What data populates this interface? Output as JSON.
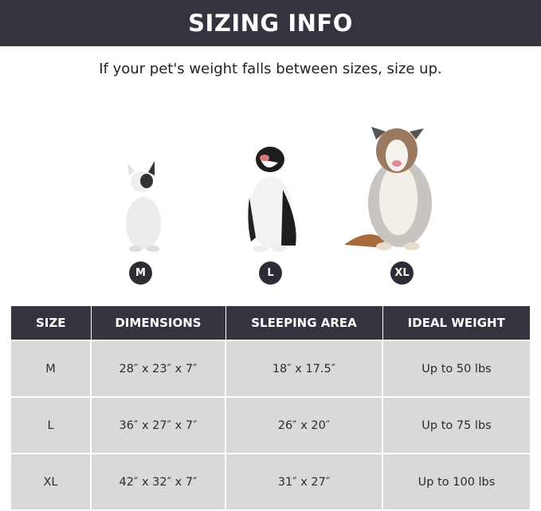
{
  "banner": {
    "title": "SIZING INFO"
  },
  "subtitle": "If your pet's weight falls between sizes, size up.",
  "dogs": [
    {
      "size": "M",
      "icon": "french-bulldog-photo"
    },
    {
      "size": "L",
      "icon": "border-collie-photo"
    },
    {
      "size": "XL",
      "icon": "australian-shepherd-photo"
    }
  ],
  "table": {
    "headers": [
      "SIZE",
      "DIMENSIONS",
      "SLEEPING AREA",
      "IDEAL WEIGHT"
    ],
    "rows": [
      [
        "M",
        "28″ x 23″ x 7″",
        "18″ x 17.5″",
        "Up to 50 lbs"
      ],
      [
        "L",
        "36″ x 27″ x 7″",
        "26″ x 20″",
        "Up to 75 lbs"
      ],
      [
        "XL",
        "42″ x 32″ x 7″",
        "31″ x 27″",
        "Up to 100 lbs"
      ]
    ]
  },
  "colors": {
    "dark": "#34343e",
    "cell": "#d9d9d9"
  }
}
